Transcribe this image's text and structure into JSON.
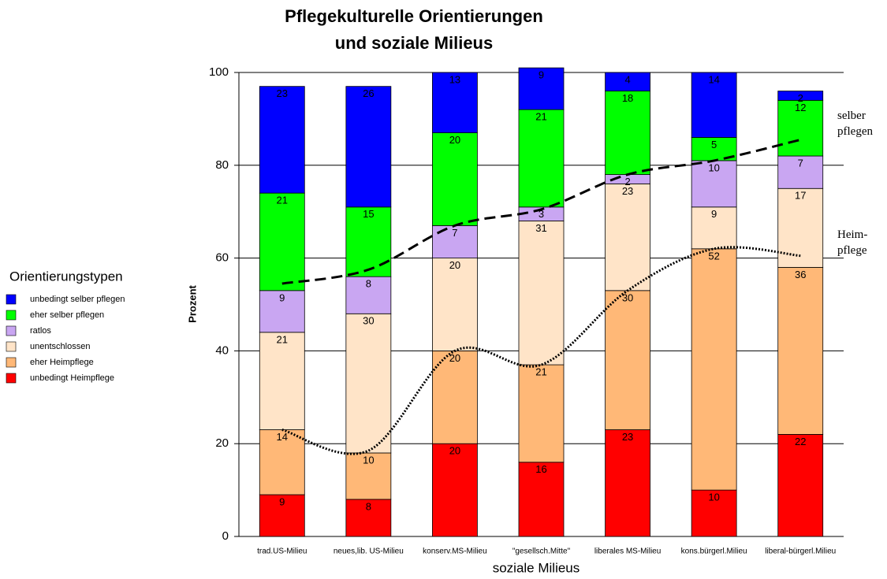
{
  "chart_data": {
    "type": "bar",
    "stacked": true,
    "title": [
      "Pflegekulturelle Orientierungen",
      "und soziale Milieus"
    ],
    "x_label": "soziale Milieus",
    "y_label": "Prozent",
    "legend_title": "Orientierungstypen",
    "legend_position": "left",
    "categories": [
      "trad.US-Milieu",
      "neues,lib. US-Milieu",
      "konserv.MS-Milieu",
      "\"gesellsch.Mitte\"",
      "liberales MS-Milieu",
      "kons.bürgerl.Milieu",
      "liberal-bürgerl.Milieu"
    ],
    "series": [
      {
        "name": "unbedingt Heimpflege",
        "color": "#ff0000",
        "values": [
          9,
          8,
          20,
          16,
          23,
          10,
          22
        ]
      },
      {
        "name": "eher Heimpflege",
        "color": "#ffb877",
        "values": [
          14,
          10,
          20,
          21,
          30,
          52,
          36
        ]
      },
      {
        "name": "unentschlossen",
        "color": "#ffe4c8",
        "values": [
          21,
          30,
          20,
          31,
          23,
          9,
          17
        ]
      },
      {
        "name": "ratlos",
        "color": "#c9a6f2",
        "values": [
          9,
          8,
          7,
          3,
          2,
          10,
          7
        ]
      },
      {
        "name": "eher selber pflegen",
        "color": "#00ff00",
        "values": [
          21,
          15,
          20,
          21,
          18,
          5,
          12
        ]
      },
      {
        "name": "unbedingt selber pflegen",
        "color": "#0000ff",
        "values": [
          23,
          26,
          13,
          9,
          4,
          14,
          2
        ]
      }
    ],
    "curves": [
      {
        "label": [
          "selber",
          "pflegen"
        ],
        "style": "dashed",
        "values": [
          54.5,
          57.5,
          67,
          70.5,
          78,
          81,
          85.5
        ]
      },
      {
        "label": [
          "Heim-",
          "pflege"
        ],
        "style": "dotted",
        "values": [
          23,
          18.5,
          40,
          37,
          53,
          62,
          60.5
        ]
      }
    ],
    "ylim": [
      0,
      100
    ],
    "yticks": [
      0,
      20,
      40,
      60,
      80,
      100
    ],
    "grid": true
  }
}
